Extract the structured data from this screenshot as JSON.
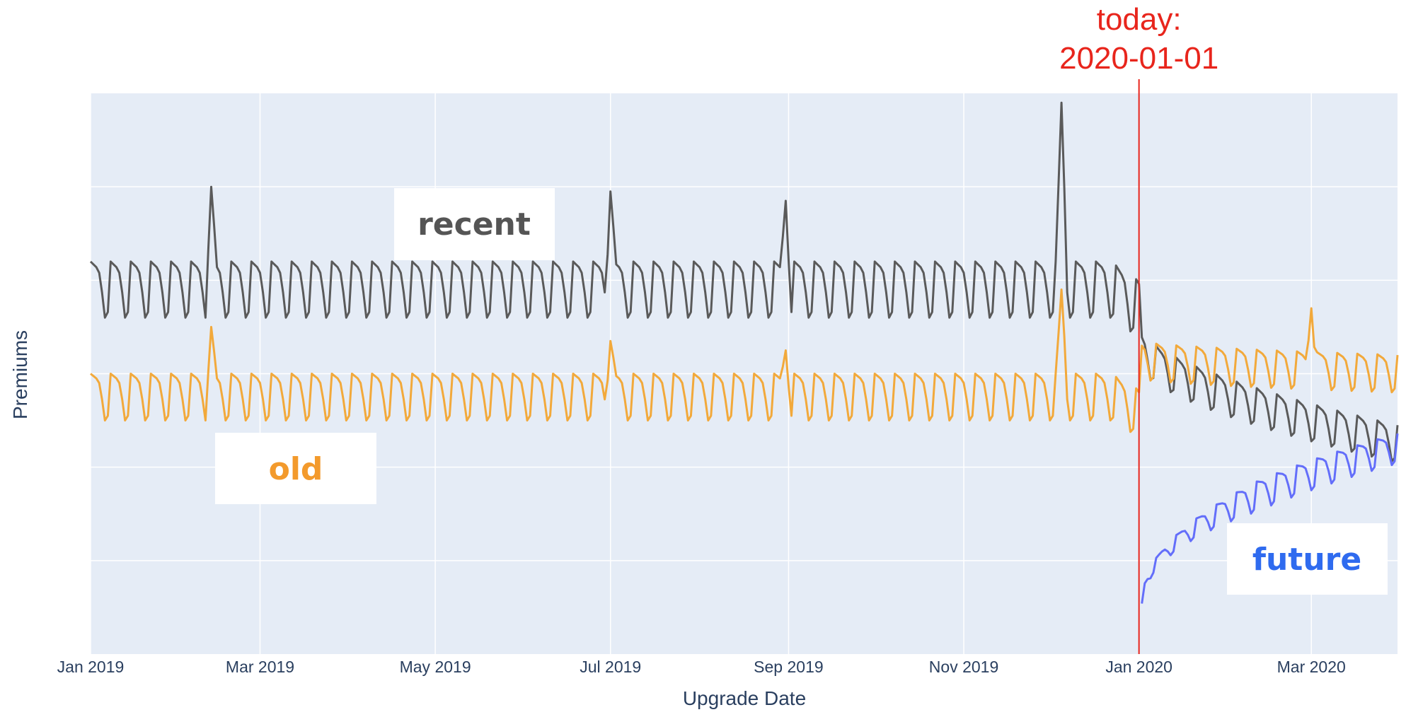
{
  "colors": {
    "background": "#ffffff",
    "plot_bg": "#e5ecf6",
    "grid": "#ffffff",
    "axis_text": "#2a3f5f",
    "today_line": "#e8251c",
    "recent": "#5a5a5a",
    "old": "#f2a93b",
    "future": "#636efa",
    "old_label": "#f39a2c",
    "future_label": "#2f6bef",
    "recent_label": "#555555"
  },
  "chart_data": {
    "type": "line",
    "xlabel": "Upgrade Date",
    "ylabel": "Premiums",
    "xlim": [
      "2019-01-01",
      "2020-03-31"
    ],
    "ylim": [
      0,
      60
    ],
    "y_tick_labels_shown": false,
    "grid": true,
    "x_ticks": [
      {
        "date": "2019-01-01",
        "label": "Jan 2019"
      },
      {
        "date": "2019-03-01",
        "label": "Mar 2019"
      },
      {
        "date": "2019-05-01",
        "label": "May 2019"
      },
      {
        "date": "2019-07-01",
        "label": "Jul 2019"
      },
      {
        "date": "2019-09-01",
        "label": "Sep 2019"
      },
      {
        "date": "2019-11-01",
        "label": "Nov 2019"
      },
      {
        "date": "2020-01-01",
        "label": "Jan 2020"
      },
      {
        "date": "2020-03-01",
        "label": "Mar 2020"
      }
    ],
    "y_grid_values": [
      10,
      20,
      30,
      40,
      50
    ],
    "annotation": {
      "date": "2020-01-01",
      "label_line1": "today:",
      "label_line2": "2020-01-01"
    },
    "series_labels": {
      "recent": "recent",
      "old": "old",
      "future": "future"
    },
    "series": [
      {
        "key": "recent",
        "weekly_high": 42,
        "weekly_low": 36,
        "post_today_start": 33,
        "post_today_end": 22.5,
        "spikes": [
          {
            "date": "2019-02-12",
            "value": 50
          },
          {
            "date": "2019-07-01",
            "value": 49.5
          },
          {
            "date": "2019-08-31",
            "value": 48.5
          },
          {
            "date": "2019-12-05",
            "value": 59
          }
        ]
      },
      {
        "key": "old",
        "weekly_high": 30,
        "weekly_low": 25,
        "post_today_start": 31.5,
        "post_today_end": 30,
        "spikes": [
          {
            "date": "2019-02-12",
            "value": 35
          },
          {
            "date": "2019-07-01",
            "value": 33.5
          },
          {
            "date": "2019-08-31",
            "value": 32.5
          },
          {
            "date": "2019-12-05",
            "value": 39
          },
          {
            "date": "2020-03-01",
            "value": 37
          }
        ]
      },
      {
        "key": "future",
        "start_date": "2020-01-02",
        "start_value": 5,
        "end_value": 22
      }
    ]
  }
}
